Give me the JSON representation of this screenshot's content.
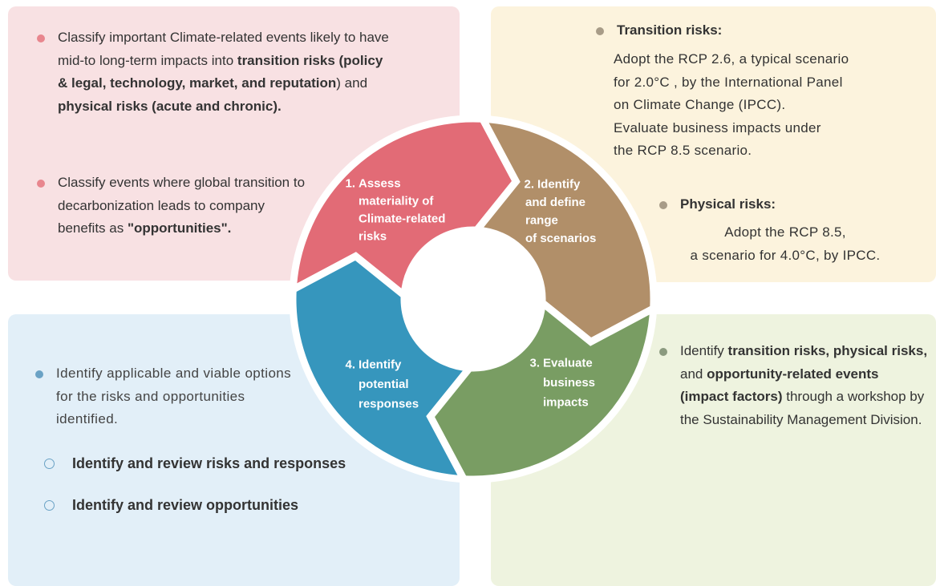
{
  "top_left": {
    "items": [
      {
        "runs": [
          {
            "text": "Classify important Climate-related events likely to have mid-to long-term impacts into "
          },
          {
            "text": "transition risks (policy & legal, technology, market, and reputation",
            "bold": true
          },
          {
            "text": ") and "
          },
          {
            "text": "physical risks (acute and chronic).",
            "bold": true
          }
        ]
      },
      {
        "runs": [
          {
            "text": "Classify events where global transition to decarbonization leads to company benefits as "
          },
          {
            "text": "\"opportunities\".",
            "bold": true
          }
        ]
      }
    ]
  },
  "top_right": {
    "items": [
      {
        "heading": "Transition risks:",
        "lines": [
          "Adopt the RCP 2.6, a typical scenario",
          "for 2.0°C , by the International Panel",
          "on Climate Change (IPCC).",
          "Evaluate business impacts under",
          "the RCP 8.5 scenario."
        ]
      },
      {
        "heading": "Physical risks:",
        "lines": [
          "Adopt the RCP 8.5,",
          "a scenario for 4.0°C, by IPCC."
        ]
      }
    ]
  },
  "bottom_right": {
    "items": [
      {
        "runs": [
          {
            "text": "Identify "
          },
          {
            "text": "transition risks, physical risks,",
            "bold": true
          },
          {
            "text": " and "
          },
          {
            "text": "opportunity-related events (impact factors)",
            "bold": true
          },
          {
            "text": " through a workshop by the Sustainability Management Division."
          }
        ]
      }
    ]
  },
  "bottom_left": {
    "items": [
      {
        "runs": [
          {
            "text": "Identify applicable and viable options for the risks and opportunities identified."
          }
        ]
      }
    ],
    "subitems": [
      "Identify and review risks and responses",
      "Identify and review opportunities"
    ]
  },
  "steps": [
    {
      "number": "1.",
      "lines": [
        "Assess",
        "materiality of",
        "Climate-related",
        "risks"
      ],
      "color": "#e26b76"
    },
    {
      "number": "2.",
      "lines": [
        "Identify",
        "and define",
        "range",
        "of scenarios"
      ],
      "color": "#b18f69"
    },
    {
      "number": "3.",
      "lines": [
        "Evaluate",
        "business",
        "impacts"
      ],
      "color": "#799d63"
    },
    {
      "number": "4.",
      "lines": [
        "Identify",
        "potential",
        "responses"
      ],
      "color": "#3696bd"
    }
  ]
}
